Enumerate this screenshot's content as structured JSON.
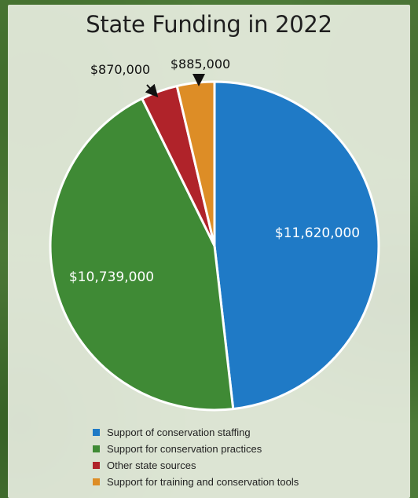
{
  "chart_data": {
    "type": "pie",
    "title": "State Funding in 2022",
    "slices": [
      {
        "label": "Support of conservation staffing",
        "value": 11620000,
        "display": "$11,620,000",
        "color": "#1f7ac6"
      },
      {
        "label": "Support for conservation practices",
        "value": 10739000,
        "display": "$10,739,000",
        "color": "#3f8a35"
      },
      {
        "label": "Other state sources",
        "value": 870000,
        "display": "$870,000",
        "color": "#b0232a"
      },
      {
        "label": "Support for training and conservation tools",
        "value": 885000,
        "display": "$885,000",
        "color": "#dd8d26"
      }
    ],
    "legend_position": "bottom"
  }
}
